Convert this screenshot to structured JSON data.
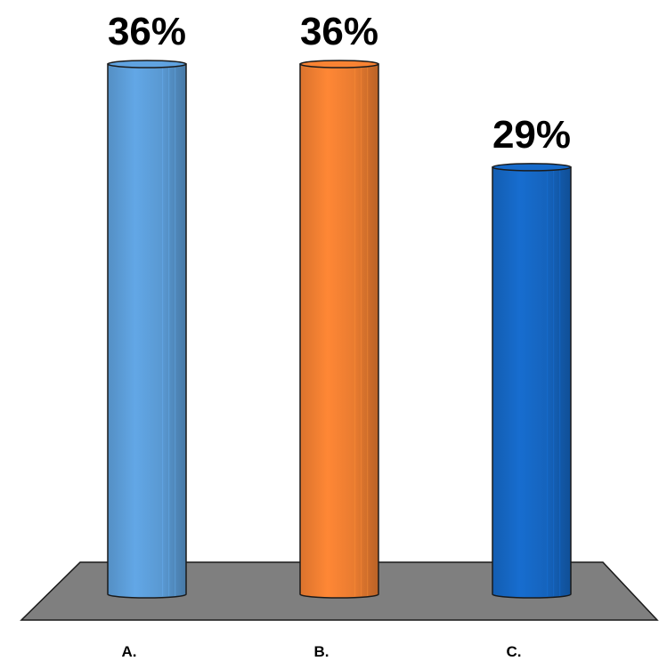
{
  "chart_data": {
    "type": "bar",
    "style": "3d-cylinder",
    "categories": [
      "A.",
      "B.",
      "C."
    ],
    "values": [
      36,
      36,
      29
    ],
    "value_labels": [
      "36%",
      "36%",
      "29%"
    ],
    "colors": [
      "#5b9bd5",
      "#ed7d31",
      "#1565c0"
    ],
    "floor_color": "#7f7f7f",
    "title": "",
    "xlabel": "",
    "ylabel": "",
    "ylim": [
      0,
      36
    ],
    "grid": false,
    "legend": "none"
  }
}
